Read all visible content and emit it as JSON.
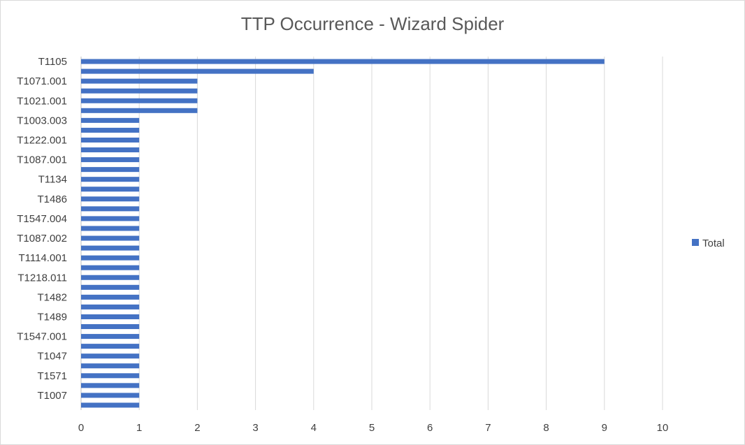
{
  "chart_data": {
    "type": "bar",
    "orientation": "horizontal",
    "title": "TTP Occurrence - Wizard Spider",
    "xlabel": "",
    "ylabel": "",
    "xlim": [
      0,
      10
    ],
    "x_ticks": [
      0,
      1,
      2,
      3,
      4,
      5,
      6,
      7,
      8,
      9,
      10
    ],
    "grid": "vertical gridlines",
    "legend_position": "right",
    "bar_color": "#4472c4",
    "categories": [
      "T1105",
      "",
      "T1071.001",
      "",
      "T1021.001",
      "",
      "T1003.003",
      "",
      "T1222.001",
      "",
      "T1087.001",
      "",
      "T1134",
      "",
      "T1486",
      "",
      "T1547.004",
      "",
      "T1087.002",
      "",
      "T1114.001",
      "",
      "T1218.011",
      "",
      "T1482",
      "",
      "T1489",
      "",
      "T1547.001",
      "",
      "T1047",
      "",
      "T1571",
      "",
      "T1007",
      ""
    ],
    "series": [
      {
        "name": "Total",
        "values": [
          9,
          4,
          2,
          2,
          2,
          2,
          1,
          1,
          1,
          1,
          1,
          1,
          1,
          1,
          1,
          1,
          1,
          1,
          1,
          1,
          1,
          1,
          1,
          1,
          1,
          1,
          1,
          1,
          1,
          1,
          1,
          1,
          1,
          1,
          1,
          1
        ]
      }
    ]
  }
}
